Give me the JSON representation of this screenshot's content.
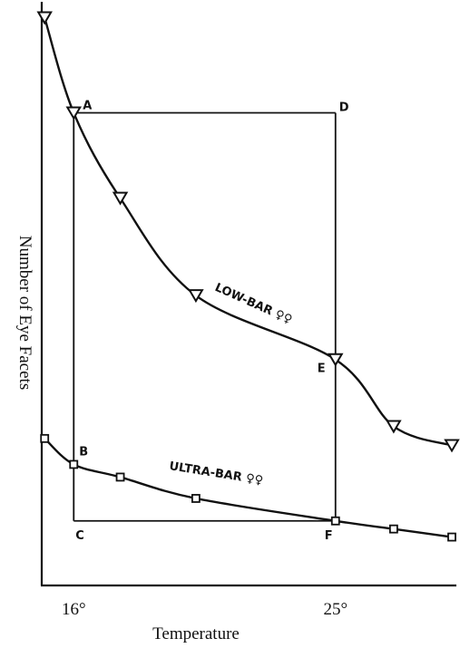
{
  "chart_data": {
    "type": "line",
    "xlabel": "Temperature",
    "ylabel": "Number of Eye Facets",
    "x_ticks": [
      {
        "value": 16,
        "label": "16°"
      },
      {
        "value": 25,
        "label": "25°"
      }
    ],
    "xlim": [
      14.9,
      29
    ],
    "ylim": [
      0,
      100
    ],
    "series": [
      {
        "name": "LOW-BAR ♀♀",
        "marker": "triangle-down",
        "points": [
          {
            "x": 15.0,
            "y": 98.5
          },
          {
            "x": 16.0,
            "y": 82.0
          },
          {
            "x": 17.6,
            "y": 67.2
          },
          {
            "x": 20.2,
            "y": 50.3
          },
          {
            "x": 25.0,
            "y": 39.2
          },
          {
            "x": 27.0,
            "y": 27.6
          },
          {
            "x": 29.0,
            "y": 24.3
          }
        ]
      },
      {
        "name": "ULTRA-BAR ♀♀",
        "marker": "square",
        "points": [
          {
            "x": 15.0,
            "y": 25.5
          },
          {
            "x": 16.0,
            "y": 21.0
          },
          {
            "x": 17.6,
            "y": 18.8
          },
          {
            "x": 20.2,
            "y": 15.1
          },
          {
            "x": 25.0,
            "y": 11.2
          },
          {
            "x": 27.0,
            "y": 9.8
          },
          {
            "x": 29.0,
            "y": 8.4
          }
        ]
      }
    ],
    "annotations": [
      {
        "label": "A",
        "x": 16.0,
        "y": 82.0
      },
      {
        "label": "B",
        "x": 16.0,
        "y": 21.0
      },
      {
        "label": "C",
        "x": 16.0,
        "y": 11.2
      },
      {
        "label": "D",
        "x": 25.0,
        "y": 82.0
      },
      {
        "label": "E",
        "x": 25.0,
        "y": 39.2
      },
      {
        "label": "F",
        "x": 25.0,
        "y": 11.2
      }
    ],
    "grid": false
  }
}
